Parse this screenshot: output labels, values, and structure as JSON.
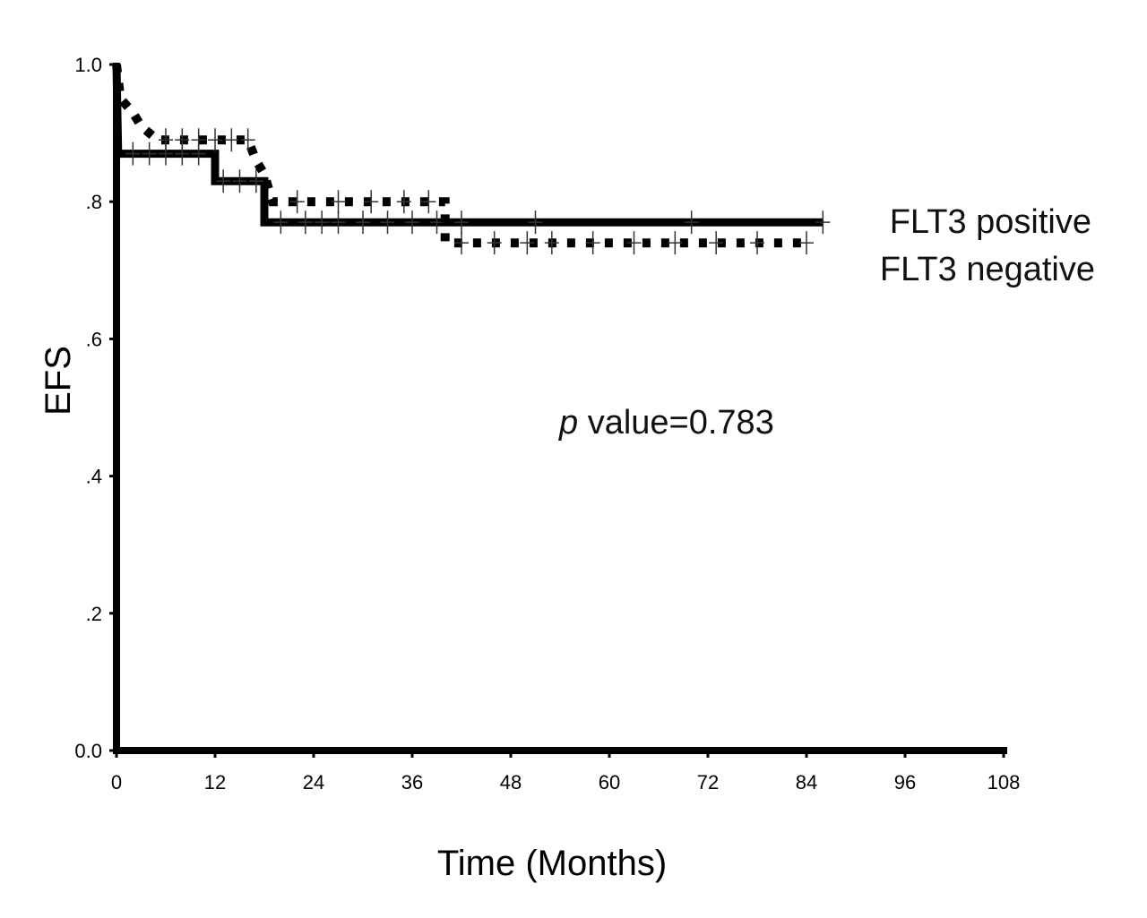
{
  "chart_data": {
    "type": "line",
    "subtype": "kaplan-meier",
    "xlabel": "Time (Months)",
    "ylabel": "EFS",
    "xlim": [
      0,
      108
    ],
    "ylim": [
      0,
      1.0
    ],
    "x_ticks": [
      0,
      12,
      24,
      36,
      48,
      60,
      72,
      84,
      96,
      108
    ],
    "x_tick_labels": [
      "0",
      "12",
      "24",
      "36",
      "48",
      "60",
      "72",
      "84",
      "96",
      "108"
    ],
    "y_ticks": [
      0,
      0.2,
      0.4,
      0.6,
      0.8,
      1.0
    ],
    "y_tick_labels": [
      "0.0",
      ".2",
      ".4",
      ".6",
      ".8",
      "1.0"
    ],
    "grid": false,
    "legend_placement": "right",
    "annotation": {
      "italic": "p",
      "text": " value=0.783"
    },
    "series": [
      {
        "name": "FLT3 positive",
        "style": "solid",
        "color": "#000000",
        "steps": [
          [
            0,
            1.0
          ],
          [
            0.2,
            0.87
          ],
          [
            12,
            0.87
          ],
          [
            12,
            0.83
          ],
          [
            18,
            0.83
          ],
          [
            18,
            0.77
          ],
          [
            86,
            0.77
          ]
        ],
        "censored_x": [
          2,
          4,
          6,
          8,
          10,
          13,
          15,
          17,
          20,
          23,
          25,
          27,
          30,
          33,
          36,
          39,
          42,
          51,
          70,
          86
        ]
      },
      {
        "name": "FLT3 negative",
        "style": "dotted",
        "color": "#000000",
        "steps": [
          [
            0,
            1.0
          ],
          [
            0.5,
            0.95
          ],
          [
            2,
            0.93
          ],
          [
            3,
            0.91
          ],
          [
            5,
            0.89
          ],
          [
            16,
            0.89
          ],
          [
            17,
            0.86
          ],
          [
            18,
            0.84
          ],
          [
            19,
            0.8
          ],
          [
            40,
            0.8
          ],
          [
            40,
            0.74
          ],
          [
            84,
            0.74
          ]
        ],
        "censored_x": [
          6,
          8,
          10,
          12,
          14,
          16,
          22,
          27,
          31,
          35,
          38,
          42,
          46,
          50,
          53,
          58,
          63,
          68,
          73,
          78,
          84
        ]
      }
    ]
  }
}
